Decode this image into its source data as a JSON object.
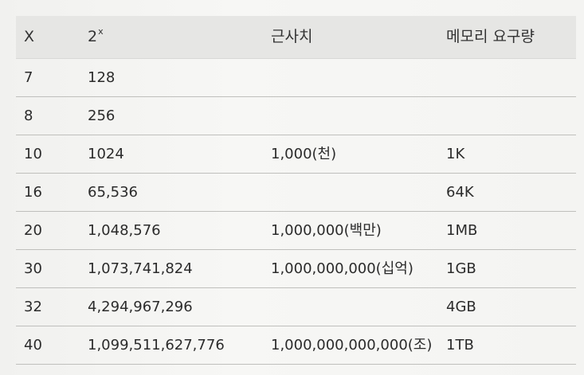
{
  "table": {
    "headers": {
      "x": "X",
      "pow_base": "2",
      "pow_exp": "x",
      "approx": "근사치",
      "memory": "메모리 요구량"
    },
    "rows": [
      {
        "x": "7",
        "pow": "128",
        "approx": "",
        "memory": ""
      },
      {
        "x": "8",
        "pow": "256",
        "approx": "",
        "memory": ""
      },
      {
        "x": "10",
        "pow": "1024",
        "approx": "1,000(천)",
        "memory": "1K"
      },
      {
        "x": "16",
        "pow": "65,536",
        "approx": "",
        "memory": "64K"
      },
      {
        "x": "20",
        "pow": "1,048,576",
        "approx": "1,000,000(백만)",
        "memory": "1MB"
      },
      {
        "x": "30",
        "pow": "1,073,741,824",
        "approx": "1,000,000,000(십억)",
        "memory": "1GB"
      },
      {
        "x": "32",
        "pow": "4,294,967,296",
        "approx": "",
        "memory": "4GB"
      },
      {
        "x": "40",
        "pow": "1,099,511,627,776",
        "approx": "1,000,000,000,000(조)",
        "memory": "1TB"
      }
    ]
  }
}
